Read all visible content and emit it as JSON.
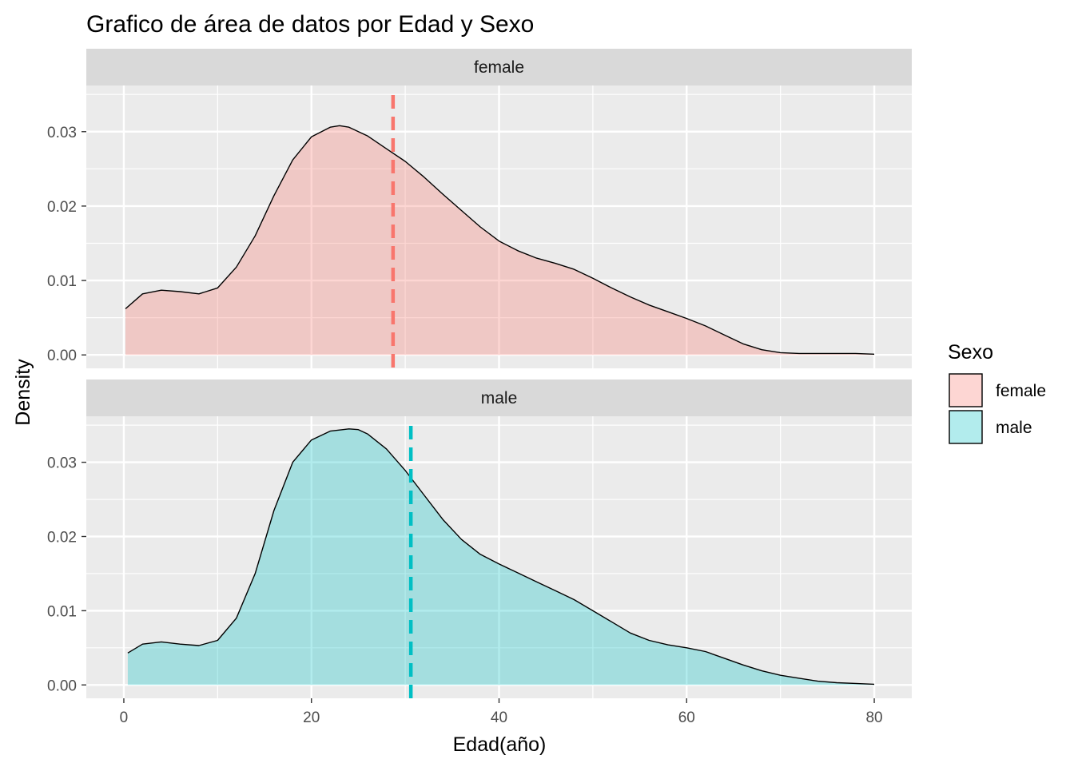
{
  "chart_data": {
    "type": "area",
    "title": "Grafico de área de datos por Edad y Sexo",
    "xlabel": "Edad(año)",
    "ylabel": "Density",
    "xlim": [
      -4,
      84
    ],
    "ylim": [
      -0.0018,
      0.0362
    ],
    "x_ticks": [
      0,
      20,
      40,
      60,
      80
    ],
    "y_ticks": [
      0.0,
      0.01,
      0.02,
      0.03
    ],
    "grid": true,
    "legend": {
      "title": "Sexo",
      "position": "right",
      "entries": [
        {
          "label": "female",
          "fill": "#F8766D"
        },
        {
          "label": "male",
          "fill": "#00BFC4"
        }
      ]
    },
    "facets": [
      {
        "name": "female",
        "fill": "#F8766D",
        "mean_line": 28.7,
        "x": [
          0.17,
          2,
          4,
          6,
          8,
          10,
          12,
          14,
          16,
          18,
          20,
          22,
          23,
          24,
          26,
          28,
          30,
          32,
          34,
          36,
          38,
          40,
          42,
          44,
          46,
          48,
          50,
          52,
          54,
          56,
          58,
          60,
          62,
          64,
          66,
          68,
          70,
          72,
          74,
          76,
          78,
          80
        ],
        "y": [
          0.0062,
          0.0082,
          0.0087,
          0.0085,
          0.0082,
          0.009,
          0.0118,
          0.016,
          0.0214,
          0.0262,
          0.0293,
          0.0306,
          0.0308,
          0.0306,
          0.0294,
          0.0277,
          0.026,
          0.0239,
          0.0216,
          0.0194,
          0.0172,
          0.0153,
          0.014,
          0.013,
          0.0123,
          0.0115,
          0.0103,
          0.009,
          0.0078,
          0.0067,
          0.0058,
          0.0049,
          0.0039,
          0.0027,
          0.0015,
          0.0007,
          0.0003,
          0.0002,
          0.0002,
          0.0002,
          0.0002,
          0.0001
        ]
      },
      {
        "name": "male",
        "fill": "#00BFC4",
        "mean_line": 30.6,
        "x": [
          0.42,
          2,
          4,
          6,
          8,
          10,
          12,
          14,
          16,
          18,
          20,
          22,
          24,
          25,
          26,
          28,
          30,
          32,
          34,
          36,
          38,
          40,
          42,
          44,
          46,
          48,
          50,
          52,
          54,
          56,
          58,
          60,
          62,
          64,
          66,
          68,
          70,
          72,
          74,
          76,
          78,
          80
        ],
        "y": [
          0.0043,
          0.0055,
          0.0058,
          0.0055,
          0.0053,
          0.006,
          0.009,
          0.015,
          0.0235,
          0.03,
          0.033,
          0.0342,
          0.0345,
          0.0344,
          0.0338,
          0.0318,
          0.0289,
          0.0256,
          0.0223,
          0.0196,
          0.0176,
          0.0163,
          0.0151,
          0.0139,
          0.0127,
          0.0115,
          0.01,
          0.0085,
          0.007,
          0.006,
          0.0054,
          0.005,
          0.0045,
          0.0036,
          0.0027,
          0.0019,
          0.0013,
          0.0009,
          0.0005,
          0.0003,
          0.0002,
          0.0001
        ]
      }
    ]
  }
}
